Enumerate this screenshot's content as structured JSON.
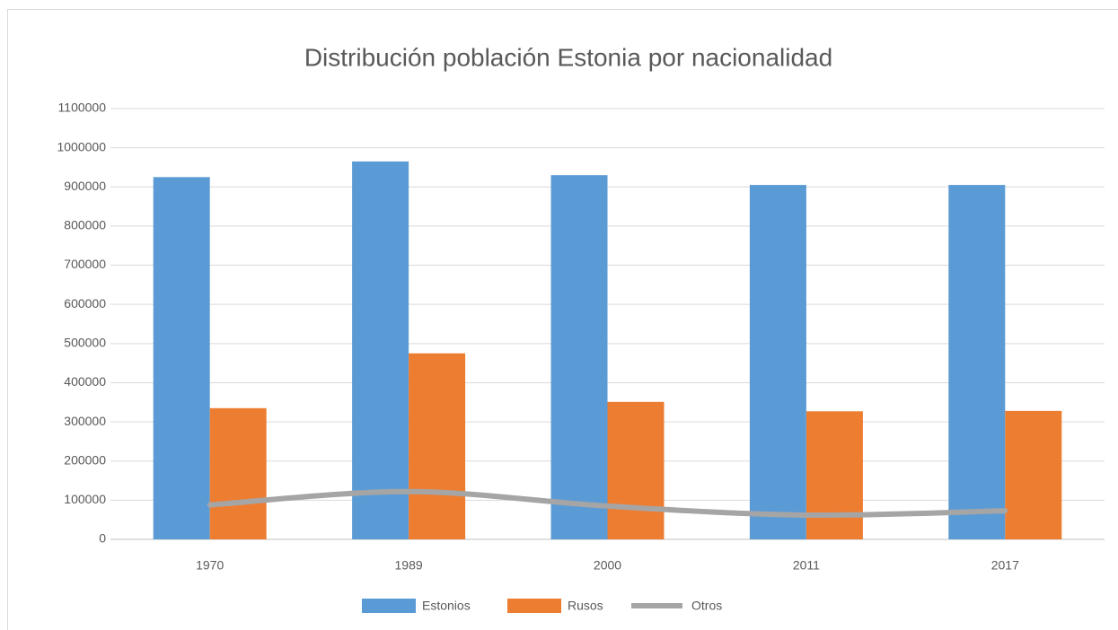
{
  "chart_data": {
    "type": "bar",
    "title": "Distribución población Estonia por nacionalidad",
    "categories": [
      "1970",
      "1989",
      "2000",
      "2011",
      "2017"
    ],
    "series": [
      {
        "name": "Estonios",
        "color": "#5b9bd5",
        "values": [
          925000,
          965000,
          930000,
          905000,
          905000
        ]
      },
      {
        "name": "Rusos",
        "color": "#ed7d31",
        "values": [
          335000,
          475000,
          351000,
          327000,
          328000
        ]
      },
      {
        "name": "Otros",
        "color": "#a5a5a5",
        "type": "line",
        "smooth": true,
        "values": [
          88000,
          122000,
          85000,
          62000,
          73000
        ]
      }
    ],
    "ylim": [
      0,
      1100000
    ],
    "yticks": [
      0,
      100000,
      200000,
      300000,
      400000,
      500000,
      600000,
      700000,
      800000,
      900000,
      1000000,
      1100000
    ],
    "grid": true,
    "legend": "bottom"
  }
}
